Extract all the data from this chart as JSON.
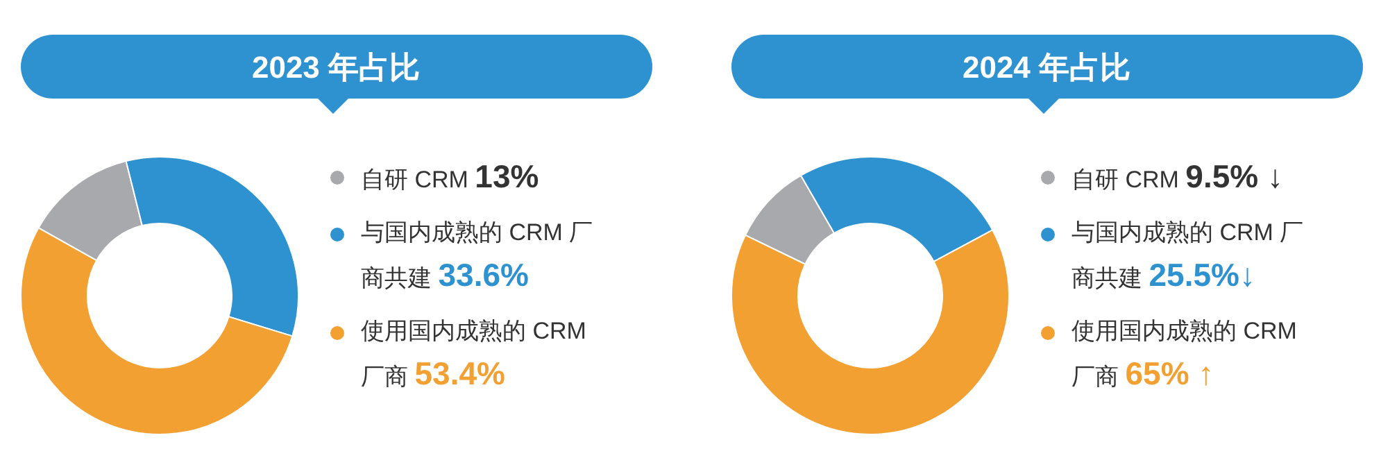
{
  "chart_data": [
    {
      "type": "donut",
      "title": "2023 年占比",
      "categories": [
        "自研 CRM",
        "与国内成熟的 CRM 厂商共建",
        "使用国内成熟的 CRM 厂商"
      ],
      "values": [
        13,
        33.6,
        53.4
      ],
      "colors": [
        "#a7a9ac",
        "#2e92d0",
        "#f3a033"
      ],
      "value_labels": [
        "13%",
        "33.6%",
        "53.4%"
      ],
      "legend": "right"
    },
    {
      "type": "donut",
      "title": "2024 年占比",
      "categories": [
        "自研 CRM",
        "与国内成熟的 CRM 厂商共建",
        "使用国内成熟的 CRM 厂商"
      ],
      "values": [
        9.5,
        25.5,
        65
      ],
      "colors": [
        "#a7a9ac",
        "#2e92d0",
        "#f3a033"
      ],
      "value_labels": [
        "9.5% ↓",
        "25.5%↓",
        "65% ↑"
      ],
      "legend": "right"
    }
  ]
}
